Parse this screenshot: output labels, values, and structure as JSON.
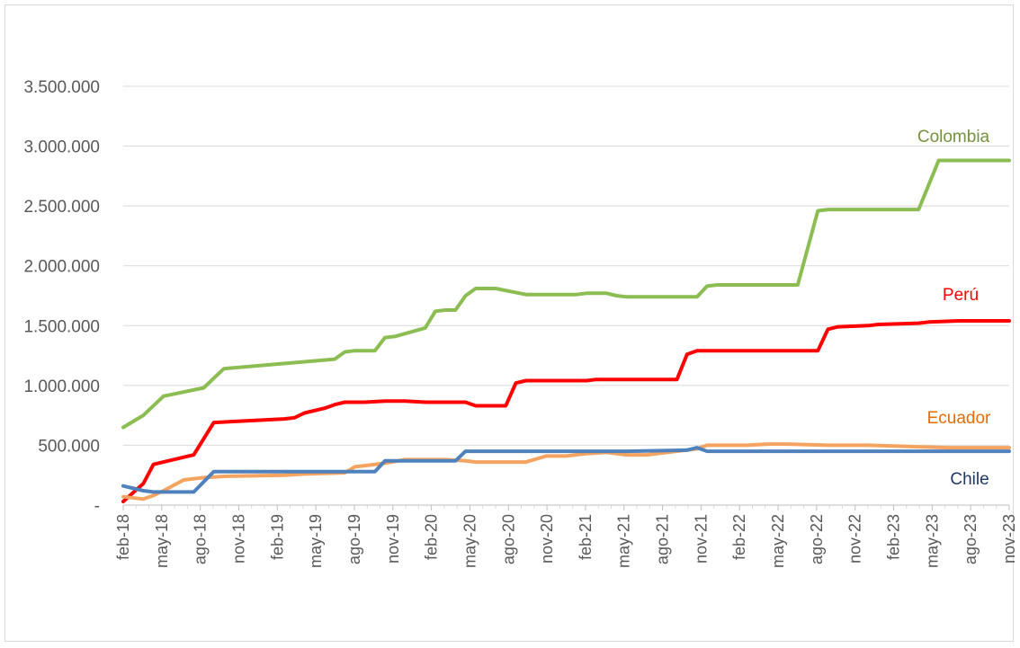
{
  "chart_data": {
    "type": "line",
    "title": "",
    "xlabel": "",
    "ylabel": "",
    "ylim": [
      0,
      3500000
    ],
    "grid": true,
    "y_ticks": [
      0,
      500000,
      1000000,
      1500000,
      2000000,
      2500000,
      3000000,
      3500000
    ],
    "y_tick_labels": [
      "-",
      "500.000",
      "1.000.000",
      "1.500.000",
      "2.000.000",
      "2.500.000",
      "3.000.000",
      "3.500.000"
    ],
    "x_tick_labels": [
      "feb-18",
      "may-18",
      "ago-18",
      "nov-18",
      "feb-19",
      "may-19",
      "ago-19",
      "nov-19",
      "feb-20",
      "may-20",
      "ago-20",
      "nov-20",
      "feb-21",
      "may-21",
      "ago-21",
      "nov-21",
      "feb-22",
      "may-22",
      "ago-22",
      "nov-22",
      "feb-23",
      "may-23",
      "ago-23",
      "nov-23"
    ],
    "x_start": "feb-18",
    "x_months": 70,
    "series": [
      {
        "name": "Colombia",
        "color": "#8cbd52",
        "points": [
          [
            0,
            650000
          ],
          [
            2,
            750000
          ],
          [
            4,
            910000
          ],
          [
            8,
            980000
          ],
          [
            10,
            1140000
          ],
          [
            21,
            1220000
          ],
          [
            22,
            1280000
          ],
          [
            23,
            1290000
          ],
          [
            25,
            1290000
          ],
          [
            26,
            1400000
          ],
          [
            27,
            1410000
          ],
          [
            30,
            1480000
          ],
          [
            31,
            1620000
          ],
          [
            32,
            1630000
          ],
          [
            33,
            1630000
          ],
          [
            34,
            1750000
          ],
          [
            35,
            1810000
          ],
          [
            37,
            1810000
          ],
          [
            40,
            1760000
          ],
          [
            45,
            1760000
          ],
          [
            46,
            1770000
          ],
          [
            48,
            1770000
          ],
          [
            49,
            1750000
          ],
          [
            50,
            1740000
          ],
          [
            55,
            1740000
          ],
          [
            57,
            1740000
          ],
          [
            58,
            1830000
          ],
          [
            59,
            1840000
          ],
          [
            65,
            1840000
          ],
          [
            67,
            1840000
          ],
          [
            69,
            2460000
          ],
          [
            70,
            2470000
          ],
          [
            79,
            2470000
          ],
          [
            81,
            2880000
          ],
          [
            88,
            2880000
          ]
        ]
      },
      {
        "name": "Perú",
        "color": "#ff0000",
        "points": [
          [
            0,
            30000
          ],
          [
            2,
            180000
          ],
          [
            3,
            340000
          ],
          [
            7,
            420000
          ],
          [
            9,
            690000
          ],
          [
            16,
            720000
          ],
          [
            17,
            730000
          ],
          [
            18,
            770000
          ],
          [
            20,
            810000
          ],
          [
            21,
            840000
          ],
          [
            22,
            860000
          ],
          [
            24,
            860000
          ],
          [
            26,
            870000
          ],
          [
            28,
            870000
          ],
          [
            30,
            860000
          ],
          [
            32,
            860000
          ],
          [
            34,
            860000
          ],
          [
            35,
            830000
          ],
          [
            38,
            830000
          ],
          [
            39,
            1020000
          ],
          [
            40,
            1040000
          ],
          [
            44,
            1040000
          ],
          [
            46,
            1040000
          ],
          [
            47,
            1050000
          ],
          [
            52,
            1050000
          ],
          [
            55,
            1050000
          ],
          [
            56,
            1260000
          ],
          [
            57,
            1290000
          ],
          [
            65,
            1290000
          ],
          [
            69,
            1290000
          ],
          [
            70,
            1470000
          ],
          [
            71,
            1490000
          ],
          [
            74,
            1500000
          ],
          [
            75,
            1510000
          ],
          [
            79,
            1520000
          ],
          [
            80,
            1530000
          ],
          [
            83,
            1540000
          ],
          [
            88,
            1540000
          ]
        ]
      },
      {
        "name": "Ecuador",
        "color": "#f4a460",
        "points": [
          [
            0,
            70000
          ],
          [
            2,
            50000
          ],
          [
            3,
            80000
          ],
          [
            4,
            120000
          ],
          [
            6,
            210000
          ],
          [
            8,
            230000
          ],
          [
            10,
            240000
          ],
          [
            16,
            250000
          ],
          [
            18,
            260000
          ],
          [
            22,
            270000
          ],
          [
            23,
            320000
          ],
          [
            24,
            330000
          ],
          [
            26,
            350000
          ],
          [
            28,
            380000
          ],
          [
            30,
            380000
          ],
          [
            32,
            380000
          ],
          [
            34,
            370000
          ],
          [
            35,
            360000
          ],
          [
            40,
            360000
          ],
          [
            42,
            410000
          ],
          [
            44,
            410000
          ],
          [
            46,
            430000
          ],
          [
            48,
            440000
          ],
          [
            50,
            420000
          ],
          [
            52,
            420000
          ],
          [
            54,
            440000
          ],
          [
            56,
            460000
          ],
          [
            57,
            470000
          ],
          [
            58,
            500000
          ],
          [
            62,
            500000
          ],
          [
            64,
            510000
          ],
          [
            66,
            510000
          ],
          [
            70,
            500000
          ],
          [
            74,
            500000
          ],
          [
            78,
            490000
          ],
          [
            82,
            480000
          ],
          [
            88,
            480000
          ]
        ]
      },
      {
        "name": "Chile",
        "color": "#4f81bd",
        "points": [
          [
            0,
            160000
          ],
          [
            2,
            120000
          ],
          [
            3,
            110000
          ],
          [
            7,
            110000
          ],
          [
            9,
            280000
          ],
          [
            16,
            280000
          ],
          [
            22,
            280000
          ],
          [
            25,
            280000
          ],
          [
            26,
            370000
          ],
          [
            28,
            370000
          ],
          [
            32,
            370000
          ],
          [
            33,
            370000
          ],
          [
            34,
            450000
          ],
          [
            40,
            450000
          ],
          [
            42,
            450000
          ],
          [
            44,
            450000
          ],
          [
            50,
            450000
          ],
          [
            56,
            460000
          ],
          [
            57,
            480000
          ],
          [
            58,
            450000
          ],
          [
            62,
            450000
          ],
          [
            70,
            450000
          ],
          [
            80,
            450000
          ],
          [
            88,
            450000
          ]
        ]
      }
    ],
    "labels": [
      {
        "series": "Colombia",
        "text": "Colombia",
        "color": "#76923c"
      },
      {
        "series": "Perú",
        "text": "Perú",
        "color": "#ff0000"
      },
      {
        "series": "Ecuador",
        "text": "Ecuador",
        "color": "#e36c09"
      },
      {
        "series": "Chile",
        "text": "Chile",
        "color": "#1f3864"
      }
    ]
  }
}
